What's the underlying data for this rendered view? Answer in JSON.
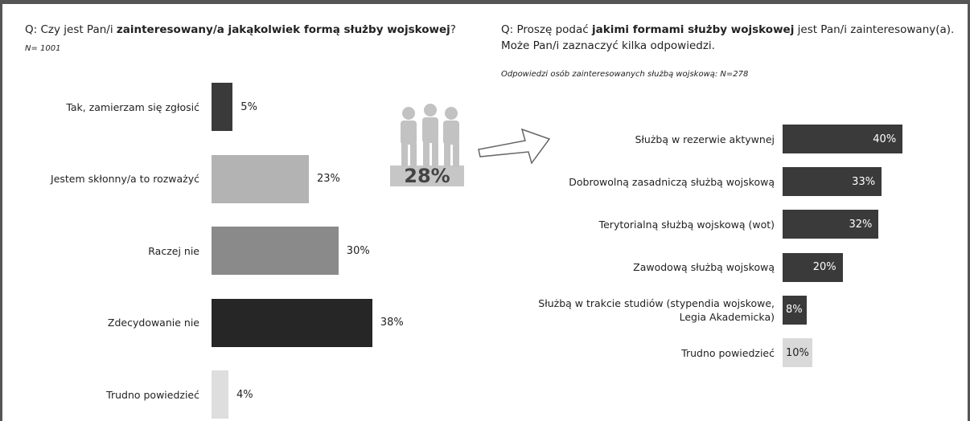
{
  "chart_data": [
    {
      "type": "hbar",
      "title": [
        "Q: Czy jest Pan/i ",
        "zainteresowany/a jakąkolwiek formą służby wojskowej",
        "?"
      ],
      "subtitle": "N= 1001",
      "categories": [
        "Tak, zamierzam się zgłosić",
        "Jestem skłonny/a to rozważyć",
        "Raczej nie",
        "Zdecydowanie nie",
        "Trudno powiedzieć"
      ],
      "values": [
        5,
        23,
        30,
        38,
        4
      ],
      "value_labels": [
        "5%",
        "23%",
        "30%",
        "38%",
        "4%"
      ],
      "colors": [
        "#3a3a3a",
        "#b3b3b3",
        "#8a8a8a",
        "#262626",
        "#dedede"
      ]
    },
    {
      "type": "hbar",
      "title": [
        "Q: Proszę podać ",
        "jakimi formami służby wojskowej",
        " jest Pan/i zainteresowany(a).\nMoże Pan/i zaznaczyć kilka odpowiedzi."
      ],
      "subtitle": "Odpowiedzi osób zainteresowanych służbą wojskową: N=278",
      "annotation": "28%",
      "categories": [
        "Służbą w rezerwie aktywnej",
        "Dobrowolną zasadniczą służbą wojskową",
        "Terytorialną służbą wojskową (wot)",
        "Zawodową służbą wojskową",
        "Służbą w trakcie studiów (stypendia wojskowe,\nLegia Akademicka)",
        "Trudno powiedzieć"
      ],
      "values": [
        40,
        33,
        32,
        20,
        8,
        10
      ],
      "value_labels": [
        "40%",
        "33%",
        "32%",
        "20%",
        "8%",
        "10%"
      ],
      "colors": [
        "#3a3a3a",
        "#3a3a3a",
        "#3a3a3a",
        "#3a3a3a",
        "#3a3a3a",
        "#d9d9d9"
      ]
    }
  ]
}
